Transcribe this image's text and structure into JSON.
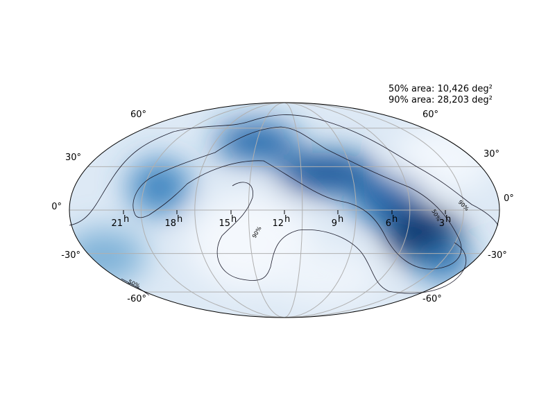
{
  "annotations": [
    "50% area: 10,426 deg²",
    "90% area: 28,203 deg²"
  ],
  "dec_labels": [
    "60°",
    "30°",
    "0°",
    "-30°",
    "-60°"
  ],
  "ra_labels": [
    {
      "hours": "21",
      "suffix": "h"
    },
    {
      "hours": "18",
      "suffix": "h"
    },
    {
      "hours": "15",
      "suffix": "h"
    },
    {
      "hours": "12",
      "suffix": "h"
    },
    {
      "hours": "9",
      "suffix": "h"
    },
    {
      "hours": "6",
      "suffix": "h"
    },
    {
      "hours": "3",
      "suffix": "h"
    }
  ],
  "contour_labels": [
    "50%",
    "90%",
    "90%",
    "50%"
  ]
}
